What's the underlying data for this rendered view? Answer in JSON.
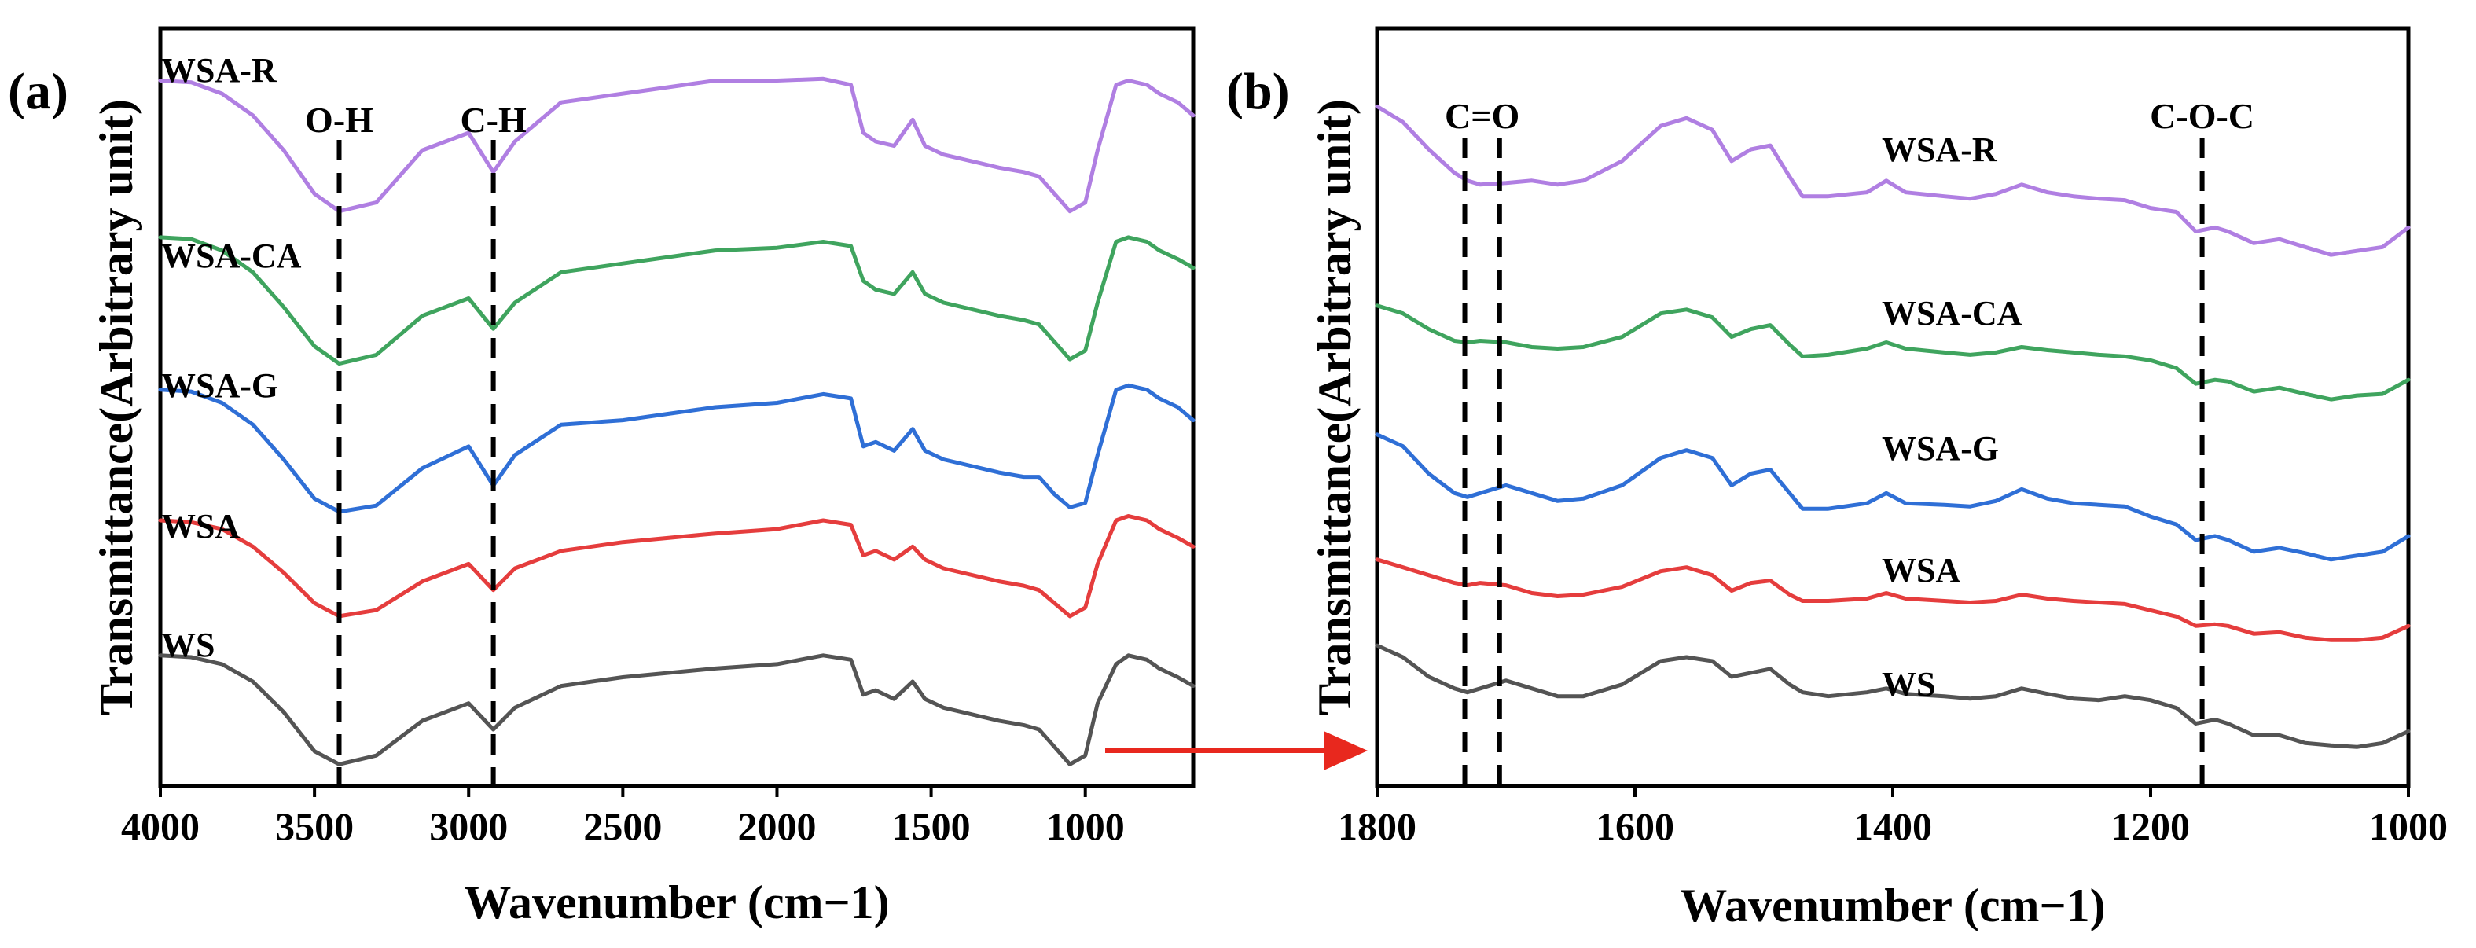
{
  "colors": {
    "WSA-R": "#b07fe2",
    "WSA-CA": "#3fa45e",
    "WSA-G": "#2f6fd6",
    "WSA": "#e53d3d",
    "WS": "#545454",
    "arrow": "#e8281e"
  },
  "arrow": {
    "from_panel": "a",
    "to_panel": "b"
  },
  "chart_data": [
    {
      "type": "line",
      "panel": "(a)",
      "title": "",
      "xlabel": "Wavenumber (cm−1)",
      "ylabel": "Transmittance(Arbitrary unit)",
      "xlim": [
        4000,
        650
      ],
      "x_reversed": true,
      "yticks_shown": false,
      "ylim": [
        -0.2,
        8.5
      ],
      "xticks": [
        4000,
        3500,
        3000,
        2500,
        2000,
        1500,
        1000
      ],
      "series_order": [
        "WSA-R",
        "WSA-CA",
        "WSA-G",
        "WSA",
        "WS"
      ],
      "series_labels": [
        "WSA-R",
        "WSA-CA",
        "WSA-G",
        "WSA",
        "WS"
      ],
      "series": [
        {
          "name": "WSA-R",
          "offset": 6.3,
          "x": [
            4000,
            3900,
            3800,
            3700,
            3600,
            3500,
            3420,
            3300,
            3150,
            3000,
            2920,
            2850,
            2700,
            2500,
            2200,
            2000,
            1850,
            1760,
            1720,
            1680,
            1620,
            1560,
            1520,
            1460,
            1400,
            1340,
            1280,
            1200,
            1150,
            1100,
            1050,
            1000,
            960,
            900,
            860,
            800,
            760,
            700,
            650
          ],
          "values": [
            1.6,
            1.58,
            1.45,
            1.2,
            0.8,
            0.3,
            0.1,
            0.2,
            0.8,
            1.0,
            0.55,
            0.9,
            1.35,
            1.45,
            1.6,
            1.6,
            1.62,
            1.55,
            1.0,
            0.9,
            0.85,
            1.15,
            0.85,
            0.75,
            0.7,
            0.65,
            0.6,
            0.55,
            0.5,
            0.3,
            0.1,
            0.2,
            0.8,
            1.55,
            1.6,
            1.55,
            1.45,
            1.35,
            1.2
          ]
        },
        {
          "name": "WSA-CA",
          "offset": 4.6,
          "x": [
            4000,
            3900,
            3800,
            3700,
            3600,
            3500,
            3420,
            3300,
            3150,
            3000,
            2920,
            2850,
            2700,
            2500,
            2200,
            2000,
            1850,
            1760,
            1720,
            1680,
            1620,
            1560,
            1520,
            1460,
            1400,
            1340,
            1280,
            1200,
            1150,
            1100,
            1050,
            1000,
            960,
            900,
            860,
            800,
            760,
            700,
            650
          ],
          "values": [
            1.5,
            1.48,
            1.35,
            1.1,
            0.7,
            0.25,
            0.05,
            0.15,
            0.6,
            0.8,
            0.45,
            0.75,
            1.1,
            1.2,
            1.35,
            1.38,
            1.45,
            1.4,
            1.0,
            0.9,
            0.85,
            1.1,
            0.85,
            0.75,
            0.7,
            0.65,
            0.6,
            0.55,
            0.5,
            0.3,
            0.1,
            0.2,
            0.75,
            1.45,
            1.5,
            1.45,
            1.35,
            1.25,
            1.15
          ]
        },
        {
          "name": "WSA-G",
          "offset": 2.9,
          "x": [
            4000,
            3900,
            3800,
            3700,
            3600,
            3500,
            3420,
            3300,
            3150,
            3000,
            2920,
            2850,
            2700,
            2500,
            2200,
            2000,
            1850,
            1760,
            1720,
            1680,
            1620,
            1560,
            1520,
            1460,
            1400,
            1340,
            1280,
            1200,
            1150,
            1100,
            1050,
            1000,
            960,
            900,
            860,
            800,
            760,
            700,
            650
          ],
          "values": [
            1.45,
            1.43,
            1.3,
            1.05,
            0.65,
            0.2,
            0.05,
            0.12,
            0.55,
            0.8,
            0.35,
            0.7,
            1.05,
            1.1,
            1.25,
            1.3,
            1.4,
            1.35,
            0.8,
            0.85,
            0.75,
            1.0,
            0.75,
            0.65,
            0.6,
            0.55,
            0.5,
            0.45,
            0.45,
            0.25,
            0.1,
            0.15,
            0.7,
            1.45,
            1.5,
            1.45,
            1.35,
            1.25,
            1.1
          ]
        },
        {
          "name": "WSA",
          "offset": 1.7,
          "x": [
            4000,
            3900,
            3800,
            3700,
            3600,
            3500,
            3420,
            3300,
            3150,
            3000,
            2920,
            2850,
            2700,
            2500,
            2200,
            2000,
            1850,
            1760,
            1720,
            1680,
            1620,
            1560,
            1520,
            1460,
            1400,
            1340,
            1280,
            1200,
            1150,
            1100,
            1050,
            1000,
            960,
            900,
            860,
            800,
            760,
            700,
            650
          ],
          "values": [
            1.15,
            1.13,
            1.05,
            0.85,
            0.55,
            0.2,
            0.05,
            0.12,
            0.45,
            0.65,
            0.35,
            0.6,
            0.8,
            0.9,
            1.0,
            1.05,
            1.15,
            1.1,
            0.75,
            0.8,
            0.7,
            0.85,
            0.7,
            0.6,
            0.55,
            0.5,
            0.45,
            0.4,
            0.35,
            0.2,
            0.05,
            0.15,
            0.65,
            1.15,
            1.2,
            1.15,
            1.05,
            0.95,
            0.85
          ]
        },
        {
          "name": "WS",
          "offset": 0.0,
          "x": [
            4000,
            3900,
            3800,
            3700,
            3600,
            3500,
            3420,
            3300,
            3150,
            3000,
            2920,
            2850,
            2700,
            2500,
            2200,
            2000,
            1850,
            1760,
            1720,
            1680,
            1620,
            1560,
            1520,
            1460,
            1400,
            1340,
            1280,
            1200,
            1150,
            1100,
            1050,
            1000,
            960,
            900,
            860,
            800,
            760,
            700,
            650
          ],
          "values": [
            1.3,
            1.28,
            1.2,
            1.0,
            0.65,
            0.2,
            0.05,
            0.15,
            0.55,
            0.75,
            0.45,
            0.7,
            0.95,
            1.05,
            1.15,
            1.2,
            1.3,
            1.25,
            0.85,
            0.9,
            0.8,
            1.0,
            0.8,
            0.7,
            0.65,
            0.6,
            0.55,
            0.5,
            0.45,
            0.25,
            0.05,
            0.15,
            0.75,
            1.2,
            1.3,
            1.25,
            1.15,
            1.05,
            0.95
          ]
        }
      ],
      "vlines": [
        {
          "x": 3420,
          "label": "O-H"
        },
        {
          "x": 2920,
          "label": "C-H"
        }
      ]
    },
    {
      "type": "line",
      "panel": "(b)",
      "title": "",
      "xlabel": "Wavenumber (cm−1)",
      "ylabel": "Transmittance(Arbitrary unit)",
      "xlim": [
        1800,
        1000
      ],
      "x_reversed": true,
      "yticks_shown": false,
      "ylim": [
        -0.2,
        9.5
      ],
      "xticks": [
        1800,
        1600,
        1400,
        1200,
        1000
      ],
      "series_order": [
        "WSA-R",
        "WSA-CA",
        "WSA-G",
        "WSA",
        "WS"
      ],
      "series_labels": [
        "WSA-R",
        "WSA-CA",
        "WSA-G",
        "WSA",
        "WS"
      ],
      "series": [
        {
          "name": "WSA-R",
          "offset": 6.6,
          "x": [
            1800,
            1780,
            1760,
            1740,
            1730,
            1720,
            1700,
            1680,
            1660,
            1640,
            1610,
            1580,
            1560,
            1540,
            1525,
            1510,
            1495,
            1480,
            1470,
            1450,
            1420,
            1405,
            1390,
            1360,
            1340,
            1320,
            1300,
            1280,
            1260,
            1240,
            1220,
            1200,
            1180,
            1165,
            1150,
            1140,
            1120,
            1100,
            1080,
            1060,
            1040,
            1020,
            1000
          ],
          "values": [
            1.9,
            1.7,
            1.35,
            1.05,
            0.95,
            0.9,
            0.92,
            0.95,
            0.9,
            0.95,
            1.2,
            1.65,
            1.75,
            1.6,
            1.2,
            1.35,
            1.4,
            1.0,
            0.75,
            0.75,
            0.8,
            0.95,
            0.8,
            0.75,
            0.72,
            0.78,
            0.9,
            0.8,
            0.75,
            0.72,
            0.7,
            0.6,
            0.55,
            0.3,
            0.35,
            0.3,
            0.15,
            0.2,
            0.1,
            0.0,
            0.05,
            0.1,
            0.35
          ]
        },
        {
          "name": "WSA-CA",
          "offset": 4.7,
          "x": [
            1800,
            1780,
            1760,
            1740,
            1730,
            1720,
            1700,
            1680,
            1660,
            1640,
            1610,
            1580,
            1560,
            1540,
            1525,
            1510,
            1495,
            1480,
            1470,
            1450,
            1420,
            1405,
            1390,
            1360,
            1340,
            1320,
            1300,
            1280,
            1260,
            1240,
            1220,
            1200,
            1180,
            1165,
            1150,
            1140,
            1120,
            1100,
            1080,
            1060,
            1040,
            1020,
            1000
          ],
          "values": [
            1.25,
            1.15,
            0.95,
            0.8,
            0.78,
            0.8,
            0.78,
            0.72,
            0.7,
            0.72,
            0.85,
            1.15,
            1.2,
            1.1,
            0.85,
            0.95,
            1.0,
            0.75,
            0.6,
            0.62,
            0.7,
            0.78,
            0.7,
            0.65,
            0.62,
            0.65,
            0.72,
            0.68,
            0.65,
            0.62,
            0.6,
            0.55,
            0.45,
            0.25,
            0.3,
            0.28,
            0.15,
            0.2,
            0.12,
            0.05,
            0.1,
            0.12,
            0.3
          ]
        },
        {
          "name": "WSA-G",
          "offset": 2.7,
          "x": [
            1800,
            1780,
            1760,
            1740,
            1730,
            1720,
            1700,
            1680,
            1660,
            1640,
            1610,
            1580,
            1560,
            1540,
            1525,
            1510,
            1495,
            1480,
            1470,
            1450,
            1420,
            1405,
            1390,
            1360,
            1340,
            1320,
            1300,
            1280,
            1260,
            1240,
            1220,
            1200,
            1180,
            1165,
            1150,
            1140,
            1120,
            1100,
            1080,
            1060,
            1040,
            1020,
            1000
          ],
          "values": [
            1.6,
            1.45,
            1.1,
            0.85,
            0.8,
            0.85,
            0.95,
            0.85,
            0.75,
            0.78,
            0.95,
            1.3,
            1.4,
            1.3,
            0.95,
            1.1,
            1.15,
            0.85,
            0.65,
            0.65,
            0.72,
            0.85,
            0.72,
            0.7,
            0.68,
            0.75,
            0.9,
            0.78,
            0.72,
            0.7,
            0.68,
            0.55,
            0.45,
            0.25,
            0.3,
            0.25,
            0.1,
            0.15,
            0.08,
            0.0,
            0.05,
            0.1,
            0.3
          ]
        },
        {
          "name": "WSA",
          "offset": 1.55,
          "x": [
            1800,
            1780,
            1760,
            1740,
            1730,
            1720,
            1700,
            1680,
            1660,
            1640,
            1610,
            1580,
            1560,
            1540,
            1525,
            1510,
            1495,
            1480,
            1470,
            1450,
            1420,
            1405,
            1390,
            1360,
            1340,
            1320,
            1300,
            1280,
            1260,
            1240,
            1220,
            1200,
            1180,
            1165,
            1150,
            1140,
            1120,
            1100,
            1080,
            1060,
            1040,
            1020,
            1000
          ],
          "values": [
            1.15,
            1.05,
            0.95,
            0.85,
            0.82,
            0.85,
            0.82,
            0.72,
            0.68,
            0.7,
            0.8,
            1.0,
            1.05,
            0.95,
            0.75,
            0.85,
            0.88,
            0.7,
            0.62,
            0.62,
            0.65,
            0.72,
            0.65,
            0.62,
            0.6,
            0.62,
            0.7,
            0.65,
            0.62,
            0.6,
            0.58,
            0.5,
            0.42,
            0.3,
            0.32,
            0.3,
            0.2,
            0.22,
            0.15,
            0.12,
            0.12,
            0.15,
            0.3
          ]
        },
        {
          "name": "WS",
          "offset": 0.0,
          "x": [
            1800,
            1780,
            1760,
            1740,
            1730,
            1720,
            1700,
            1680,
            1660,
            1640,
            1610,
            1580,
            1560,
            1540,
            1525,
            1510,
            1495,
            1480,
            1470,
            1450,
            1420,
            1405,
            1390,
            1360,
            1340,
            1320,
            1300,
            1280,
            1260,
            1240,
            1220,
            1200,
            1180,
            1165,
            1150,
            1140,
            1120,
            1100,
            1080,
            1060,
            1040,
            1020,
            1000
          ],
          "values": [
            1.6,
            1.45,
            1.2,
            1.05,
            1.0,
            1.05,
            1.15,
            1.05,
            0.95,
            0.95,
            1.1,
            1.4,
            1.45,
            1.4,
            1.2,
            1.25,
            1.3,
            1.1,
            1.0,
            0.95,
            1.0,
            1.05,
            0.98,
            0.95,
            0.92,
            0.95,
            1.05,
            0.98,
            0.92,
            0.9,
            0.95,
            0.9,
            0.8,
            0.6,
            0.65,
            0.6,
            0.45,
            0.45,
            0.35,
            0.32,
            0.3,
            0.35,
            0.5
          ]
        }
      ],
      "vlines": [
        {
          "x": 1732,
          "label": "C=O"
        },
        {
          "x": 1705,
          "label": ""
        },
        {
          "x": 1160,
          "label": "C-O-C"
        }
      ]
    }
  ]
}
